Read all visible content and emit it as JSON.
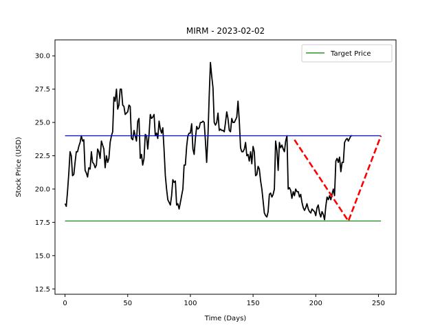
{
  "chart_data": {
    "type": "line",
    "title": "MIRM - 2023-02-02",
    "xlabel": "Time (Days)",
    "ylabel": "Stock Price (USD)",
    "xlim": [
      -8,
      264
    ],
    "ylim": [
      12.1,
      31.2
    ],
    "xticks": [
      0,
      50,
      100,
      150,
      200,
      250
    ],
    "xtick_labels": [
      "0",
      "50",
      "100",
      "150",
      "200",
      "250"
    ],
    "yticks": [
      12.5,
      15.0,
      17.5,
      20.0,
      22.5,
      25.0,
      27.5,
      30.0
    ],
    "ytick_labels": [
      "12.5",
      "15.0",
      "17.5",
      "20.0",
      "22.5",
      "25.0",
      "27.5",
      "30.0"
    ],
    "grid": false,
    "legend": {
      "position": "top-right",
      "entries": [
        "Target Price"
      ]
    },
    "series": [
      {
        "kind": "price",
        "color": "#000000",
        "points": [
          [
            0,
            18.9
          ],
          [
            1,
            18.7
          ],
          [
            2,
            19.8
          ],
          [
            3,
            21.2
          ],
          [
            4,
            22.8
          ],
          [
            5,
            22.5
          ],
          [
            6,
            21.0
          ],
          [
            7,
            21.1
          ],
          [
            8,
            22.0
          ],
          [
            9,
            22.8
          ],
          [
            10,
            22.8
          ],
          [
            11,
            23.2
          ],
          [
            12,
            23.5
          ],
          [
            13,
            24.0
          ],
          [
            14,
            23.6
          ],
          [
            15,
            23.7
          ],
          [
            16,
            21.4
          ],
          [
            17,
            21.2
          ],
          [
            18,
            20.9
          ],
          [
            19,
            21.6
          ],
          [
            20,
            21.5
          ],
          [
            21,
            22.8
          ],
          [
            22,
            22.0
          ],
          [
            23,
            21.9
          ],
          [
            24,
            21.6
          ],
          [
            25,
            21.8
          ],
          [
            26,
            23.0
          ],
          [
            27,
            22.8
          ],
          [
            28,
            22.3
          ],
          [
            29,
            23.6
          ],
          [
            30,
            23.3
          ],
          [
            31,
            23.0
          ],
          [
            32,
            21.6
          ],
          [
            33,
            22.5
          ],
          [
            34,
            22.0
          ],
          [
            35,
            22.3
          ],
          [
            36,
            23.5
          ],
          [
            37,
            24.0
          ],
          [
            38,
            24.3
          ],
          [
            39,
            26.9
          ],
          [
            40,
            26.6
          ],
          [
            41,
            27.5
          ],
          [
            42,
            26.0
          ],
          [
            43,
            26.3
          ],
          [
            44,
            27.5
          ],
          [
            45,
            27.5
          ],
          [
            46,
            26.3
          ],
          [
            47,
            26.2
          ],
          [
            48,
            25.6
          ],
          [
            49,
            25.7
          ],
          [
            50,
            25.8
          ],
          [
            51,
            26.3
          ],
          [
            52,
            26.2
          ],
          [
            53,
            23.8
          ],
          [
            54,
            23.7
          ],
          [
            55,
            24.4
          ],
          [
            56,
            24.0
          ],
          [
            57,
            23.6
          ],
          [
            58,
            25.1
          ],
          [
            59,
            25.3
          ],
          [
            60,
            22.3
          ],
          [
            61,
            22.6
          ],
          [
            62,
            21.8
          ],
          [
            63,
            22.3
          ],
          [
            64,
            24.1
          ],
          [
            65,
            24.0
          ],
          [
            66,
            23.0
          ],
          [
            67,
            24.1
          ],
          [
            68,
            25.6
          ],
          [
            69,
            25.3
          ],
          [
            70,
            25.4
          ],
          [
            71,
            25.6
          ],
          [
            72,
            24.0
          ],
          [
            73,
            24.2
          ],
          [
            74,
            23.8
          ],
          [
            75,
            25.1
          ],
          [
            76,
            24.5
          ],
          [
            77,
            24.2
          ],
          [
            78,
            24.6
          ],
          [
            79,
            23.0
          ],
          [
            80,
            21.0
          ],
          [
            81,
            20.0
          ],
          [
            82,
            19.2
          ],
          [
            83,
            19.0
          ],
          [
            84,
            18.8
          ],
          [
            85,
            19.5
          ],
          [
            86,
            20.7
          ],
          [
            87,
            20.5
          ],
          [
            88,
            20.6
          ],
          [
            89,
            18.8
          ],
          [
            90,
            18.9
          ],
          [
            91,
            18.5
          ],
          [
            92,
            19.0
          ],
          [
            93,
            19.5
          ],
          [
            94,
            20.0
          ],
          [
            95,
            21.8
          ],
          [
            96,
            21.8
          ],
          [
            97,
            23.2
          ],
          [
            98,
            24.0
          ],
          [
            99,
            24.2
          ],
          [
            100,
            24.2
          ],
          [
            101,
            24.9
          ],
          [
            102,
            23.0
          ],
          [
            103,
            22.6
          ],
          [
            104,
            23.8
          ],
          [
            105,
            24.7
          ],
          [
            106,
            24.5
          ],
          [
            107,
            24.6
          ],
          [
            108,
            25.0
          ],
          [
            109,
            25.0
          ],
          [
            110,
            25.1
          ],
          [
            111,
            25.0
          ],
          [
            112,
            23.6
          ],
          [
            113,
            22.0
          ],
          [
            114,
            24.0
          ],
          [
            115,
            27.0
          ],
          [
            116,
            29.5
          ],
          [
            117,
            28.5
          ],
          [
            118,
            27.6
          ],
          [
            119,
            25.0
          ],
          [
            120,
            24.8
          ],
          [
            121,
            25.0
          ],
          [
            122,
            25.7
          ],
          [
            123,
            24.4
          ],
          [
            124,
            24.5
          ],
          [
            125,
            24.4
          ],
          [
            126,
            24.4
          ],
          [
            127,
            24.3
          ],
          [
            128,
            25.0
          ],
          [
            129,
            25.8
          ],
          [
            130,
            25.3
          ],
          [
            131,
            24.4
          ],
          [
            132,
            24.3
          ],
          [
            133,
            25.3
          ],
          [
            134,
            25.0
          ],
          [
            135,
            25.0
          ],
          [
            136,
            25.2
          ],
          [
            137,
            25.4
          ],
          [
            138,
            26.6
          ],
          [
            139,
            25.1
          ],
          [
            140,
            23.1
          ],
          [
            141,
            22.8
          ],
          [
            142,
            22.8
          ],
          [
            143,
            23.0
          ],
          [
            144,
            23.5
          ],
          [
            145,
            22.5
          ],
          [
            146,
            22.6
          ],
          [
            147,
            22.1
          ],
          [
            148,
            22.8
          ],
          [
            149,
            21.9
          ],
          [
            150,
            23.2
          ],
          [
            151,
            22.8
          ],
          [
            152,
            21.0
          ],
          [
            153,
            21.1
          ],
          [
            154,
            21.7
          ],
          [
            155,
            21.5
          ],
          [
            156,
            20.6
          ],
          [
            157,
            20.0
          ],
          [
            158,
            19.1
          ],
          [
            159,
            18.2
          ],
          [
            160,
            18.0
          ],
          [
            161,
            17.9
          ],
          [
            162,
            18.3
          ],
          [
            163,
            19.6
          ],
          [
            164,
            19.7
          ],
          [
            165,
            19.4
          ],
          [
            166,
            19.6
          ],
          [
            167,
            20.0
          ],
          [
            168,
            23.6
          ],
          [
            169,
            22.9
          ],
          [
            170,
            21.4
          ],
          [
            171,
            23.5
          ],
          [
            172,
            23.1
          ],
          [
            173,
            23.3
          ],
          [
            174,
            23.0
          ],
          [
            175,
            22.8
          ],
          [
            176,
            23.6
          ],
          [
            177,
            24.0
          ],
          [
            178,
            20.0
          ],
          [
            179,
            20.1
          ],
          [
            180,
            19.9
          ],
          [
            181,
            19.3
          ],
          [
            182,
            19.8
          ],
          [
            183,
            19.5
          ],
          [
            184,
            20.0
          ],
          [
            185,
            19.8
          ],
          [
            186,
            19.8
          ],
          [
            187,
            19.4
          ],
          [
            188,
            19.6
          ],
          [
            189,
            19.0
          ],
          [
            190,
            18.6
          ],
          [
            191,
            18.4
          ],
          [
            192,
            18.6
          ],
          [
            193,
            18.9
          ],
          [
            194,
            18.5
          ],
          [
            195,
            18.3
          ],
          [
            196,
            18.2
          ],
          [
            197,
            18.5
          ],
          [
            198,
            18.4
          ],
          [
            199,
            18.3
          ],
          [
            200,
            18.0
          ],
          [
            201,
            18.6
          ],
          [
            202,
            18.8
          ],
          [
            203,
            18.2
          ],
          [
            204,
            17.9
          ],
          [
            205,
            18.3
          ],
          [
            206,
            18.1
          ],
          [
            207,
            17.7
          ],
          [
            208,
            18.7
          ],
          [
            209,
            19.4
          ],
          [
            210,
            19.2
          ],
          [
            211,
            19.5
          ],
          [
            212,
            19.2
          ],
          [
            213,
            19.6
          ],
          [
            214,
            20.0
          ],
          [
            215,
            19.5
          ],
          [
            216,
            22.1
          ],
          [
            217,
            22.3
          ],
          [
            218,
            22.0
          ],
          [
            219,
            22.4
          ],
          [
            220,
            21.3
          ],
          [
            221,
            22.0
          ],
          [
            222,
            22.0
          ],
          [
            223,
            23.5
          ],
          [
            224,
            23.7
          ],
          [
            225,
            23.8
          ],
          [
            226,
            23.6
          ],
          [
            227,
            23.8
          ],
          [
            228,
            24.0
          ],
          [
            229,
            24.0
          ]
        ]
      },
      {
        "kind": "hline",
        "color": "#0000ff",
        "y": 24.0,
        "x": [
          0,
          252
        ]
      },
      {
        "kind": "hline",
        "name": "Target Price",
        "color": "#008000",
        "y": 17.6,
        "x": [
          0,
          252
        ]
      },
      {
        "kind": "dashed",
        "color": "#ff0000",
        "points": [
          [
            183,
            23.7
          ],
          [
            226,
            17.6
          ],
          [
            252,
            24.0
          ]
        ]
      }
    ]
  }
}
